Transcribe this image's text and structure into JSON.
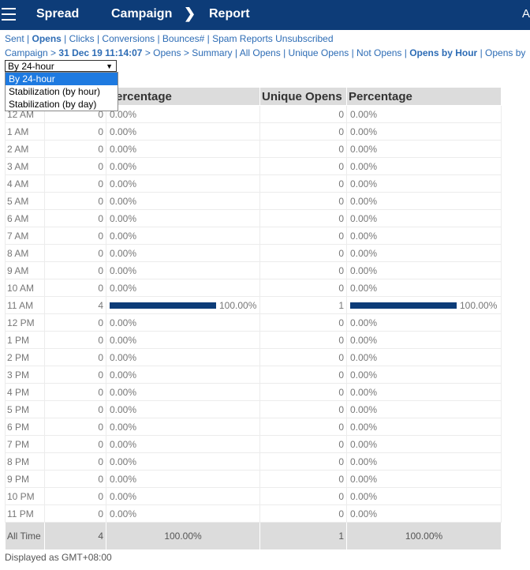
{
  "topbar": {
    "brand": "Spread",
    "section": "Campaign",
    "page": "Report",
    "account": "A"
  },
  "subnav": [
    {
      "label": "Sent",
      "active": false
    },
    {
      "label": "Opens",
      "active": true
    },
    {
      "label": "Clicks",
      "active": false
    },
    {
      "label": "Conversions",
      "active": false
    },
    {
      "label": "Bounces#",
      "active": false
    },
    {
      "label": "Spam Reports",
      "active": false
    },
    {
      "label": "Unsubscribed",
      "active": false
    }
  ],
  "breadcrumb": {
    "campaign": "Campaign",
    "date": "31 Dec 19 11:14:07",
    "opens": "Opens",
    "summary": "Summary",
    "links": [
      "All Opens",
      "Unique Opens",
      "Not Opens",
      "Opens by Hour",
      "Opens by"
    ]
  },
  "view_select": {
    "value": "By 24-hour",
    "options": [
      "By 24-hour",
      "Stabilization (by hour)",
      "Stabilization (by day)"
    ]
  },
  "table": {
    "headers": [
      "",
      "",
      "Percentage",
      "Unique Opens",
      "Percentage"
    ],
    "rows": [
      {
        "hour": "12 AM",
        "opens": "0",
        "pct": "0.00%",
        "uopens": "0",
        "upct": "0.00%",
        "opens_fill": 0,
        "uopens_fill": 0
      },
      {
        "hour": "1 AM",
        "opens": "0",
        "pct": "0.00%",
        "uopens": "0",
        "upct": "0.00%",
        "opens_fill": 0,
        "uopens_fill": 0
      },
      {
        "hour": "2 AM",
        "opens": "0",
        "pct": "0.00%",
        "uopens": "0",
        "upct": "0.00%",
        "opens_fill": 0,
        "uopens_fill": 0
      },
      {
        "hour": "3 AM",
        "opens": "0",
        "pct": "0.00%",
        "uopens": "0",
        "upct": "0.00%",
        "opens_fill": 0,
        "uopens_fill": 0
      },
      {
        "hour": "4 AM",
        "opens": "0",
        "pct": "0.00%",
        "uopens": "0",
        "upct": "0.00%",
        "opens_fill": 0,
        "uopens_fill": 0
      },
      {
        "hour": "5 AM",
        "opens": "0",
        "pct": "0.00%",
        "uopens": "0",
        "upct": "0.00%",
        "opens_fill": 0,
        "uopens_fill": 0
      },
      {
        "hour": "6 AM",
        "opens": "0",
        "pct": "0.00%",
        "uopens": "0",
        "upct": "0.00%",
        "opens_fill": 0,
        "uopens_fill": 0
      },
      {
        "hour": "7 AM",
        "opens": "0",
        "pct": "0.00%",
        "uopens": "0",
        "upct": "0.00%",
        "opens_fill": 0,
        "uopens_fill": 0
      },
      {
        "hour": "8 AM",
        "opens": "0",
        "pct": "0.00%",
        "uopens": "0",
        "upct": "0.00%",
        "opens_fill": 0,
        "uopens_fill": 0
      },
      {
        "hour": "9 AM",
        "opens": "0",
        "pct": "0.00%",
        "uopens": "0",
        "upct": "0.00%",
        "opens_fill": 0,
        "uopens_fill": 0
      },
      {
        "hour": "10 AM",
        "opens": "0",
        "pct": "0.00%",
        "uopens": "0",
        "upct": "0.00%",
        "opens_fill": 0,
        "uopens_fill": 0
      },
      {
        "hour": "11 AM",
        "opens": "4",
        "pct": "100.00%",
        "uopens": "1",
        "upct": "100.00%",
        "opens_fill": 1,
        "uopens_fill": 1
      },
      {
        "hour": "12 PM",
        "opens": "0",
        "pct": "0.00%",
        "uopens": "0",
        "upct": "0.00%",
        "opens_fill": 0,
        "uopens_fill": 0
      },
      {
        "hour": "1 PM",
        "opens": "0",
        "pct": "0.00%",
        "uopens": "0",
        "upct": "0.00%",
        "opens_fill": 0,
        "uopens_fill": 0
      },
      {
        "hour": "2 PM",
        "opens": "0",
        "pct": "0.00%",
        "uopens": "0",
        "upct": "0.00%",
        "opens_fill": 0,
        "uopens_fill": 0
      },
      {
        "hour": "3 PM",
        "opens": "0",
        "pct": "0.00%",
        "uopens": "0",
        "upct": "0.00%",
        "opens_fill": 0,
        "uopens_fill": 0
      },
      {
        "hour": "4 PM",
        "opens": "0",
        "pct": "0.00%",
        "uopens": "0",
        "upct": "0.00%",
        "opens_fill": 0,
        "uopens_fill": 0
      },
      {
        "hour": "5 PM",
        "opens": "0",
        "pct": "0.00%",
        "uopens": "0",
        "upct": "0.00%",
        "opens_fill": 0,
        "uopens_fill": 0
      },
      {
        "hour": "6 PM",
        "opens": "0",
        "pct": "0.00%",
        "uopens": "0",
        "upct": "0.00%",
        "opens_fill": 0,
        "uopens_fill": 0
      },
      {
        "hour": "7 PM",
        "opens": "0",
        "pct": "0.00%",
        "uopens": "0",
        "upct": "0.00%",
        "opens_fill": 0,
        "uopens_fill": 0
      },
      {
        "hour": "8 PM",
        "opens": "0",
        "pct": "0.00%",
        "uopens": "0",
        "upct": "0.00%",
        "opens_fill": 0,
        "uopens_fill": 0
      },
      {
        "hour": "9 PM",
        "opens": "0",
        "pct": "0.00%",
        "uopens": "0",
        "upct": "0.00%",
        "opens_fill": 0,
        "uopens_fill": 0
      },
      {
        "hour": "10 PM",
        "opens": "0",
        "pct": "0.00%",
        "uopens": "0",
        "upct": "0.00%",
        "opens_fill": 0,
        "uopens_fill": 0
      },
      {
        "hour": "11 PM",
        "opens": "0",
        "pct": "0.00%",
        "uopens": "0",
        "upct": "0.00%",
        "opens_fill": 0,
        "uopens_fill": 0
      }
    ],
    "total": {
      "label": "All Time",
      "opens": "4",
      "pct": "100.00%",
      "uopens": "1",
      "upct": "100.00%"
    }
  },
  "footer": {
    "timezone": "Displayed as GMT+08:00"
  },
  "colors": {
    "header_bg": "#0d3c78",
    "link": "#2d6cb5",
    "bar": "#0d3c78",
    "highlight": "#1e7ae0"
  }
}
